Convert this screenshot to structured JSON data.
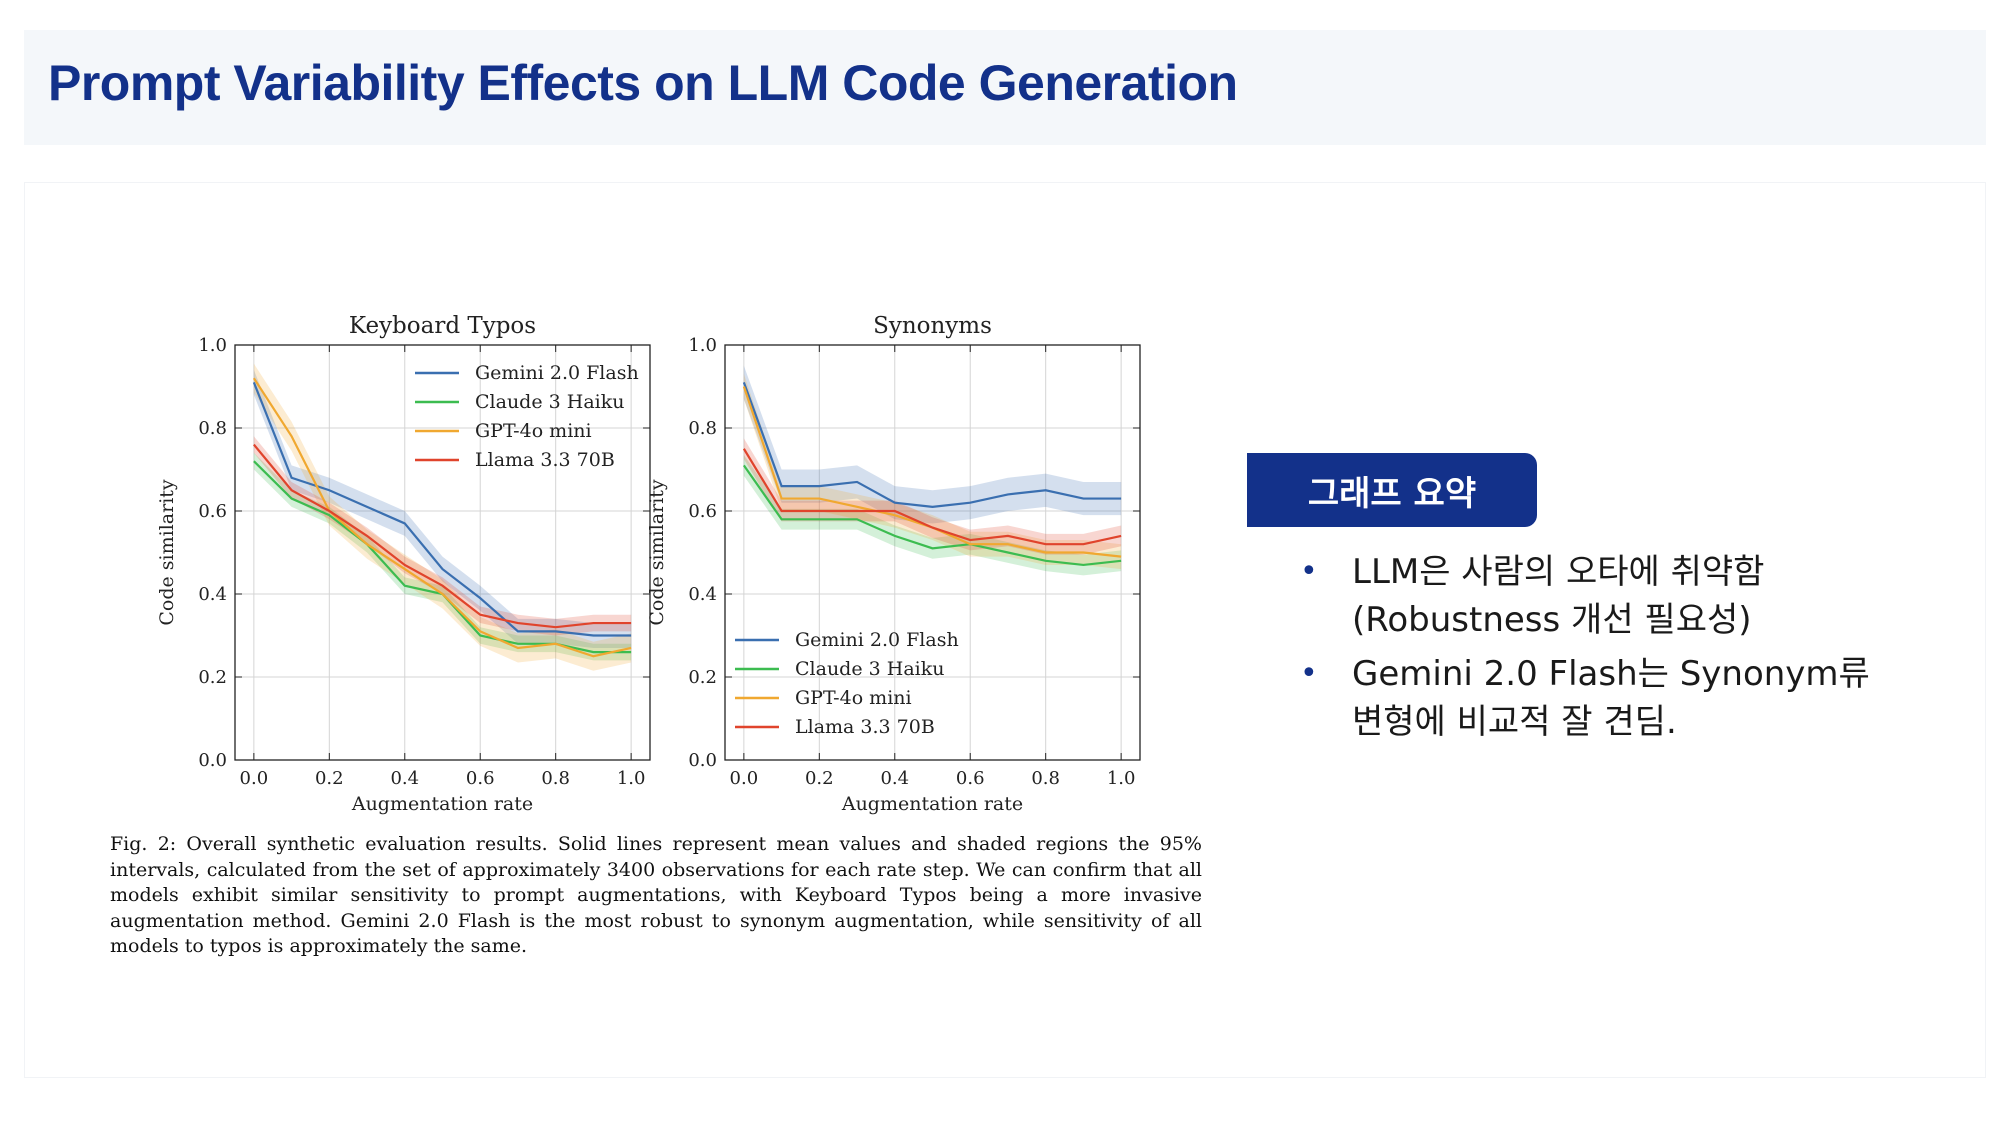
{
  "slide": {
    "title": "Prompt Variability Effects on LLM Code Generation"
  },
  "caption": "Fig. 2: Overall synthetic evaluation results. Solid lines represent mean values and shaded regions the 95% intervals, calculated from the set of approximately 3400 observations for each rate step. We can confirm that all models exhibit similar sensitivity to prompt augmentations, with Keyboard Typos being a more invasive augmentation method. Gemini 2.0 Flash is the most robust to synonym augmentation, while sensitivity of all models to typos is approximately the same.",
  "summary": {
    "badge": "그래프 요약",
    "bullets": [
      {
        "lines": [
          "LLM은 사람의 오타에 취약함",
          "(Robustness 개선 필요성)"
        ]
      },
      {
        "lines": [
          "Gemini 2.0 Flash는 Synonym류",
          "변형에 비교적 잘 견딤."
        ]
      }
    ]
  },
  "colors": {
    "title": "#13318a",
    "badge_bg": "#13318a",
    "gemini": "#3a6fb0",
    "claude": "#3cbc50",
    "gpt": "#f0a830",
    "llama": "#e0442c"
  },
  "chart_data": [
    {
      "type": "line",
      "title": "Keyboard Typos",
      "xlabel": "Augmentation rate",
      "ylabel": "Code similarity",
      "xlim": [
        -0.05,
        1.05
      ],
      "ylim": [
        0.0,
        1.0
      ],
      "xticks": [
        "0.0",
        "0.2",
        "0.4",
        "0.6",
        "0.8",
        "1.0"
      ],
      "yticks": [
        "0.0",
        "0.2",
        "0.4",
        "0.6",
        "0.8",
        "1.0"
      ],
      "grid": true,
      "legend": "top-right",
      "x": [
        0.0,
        0.1,
        0.2,
        0.3,
        0.4,
        0.5,
        0.6,
        0.7,
        0.8,
        0.9,
        1.0
      ],
      "series": [
        {
          "name": "Gemini 2.0 Flash",
          "color": "#3a6fb0",
          "band": 0.03,
          "values": [
            0.91,
            0.68,
            0.65,
            0.61,
            0.57,
            0.46,
            0.39,
            0.31,
            0.31,
            0.3,
            0.3
          ]
        },
        {
          "name": "Claude 3 Haiku",
          "color": "#3cbc50",
          "band": 0.02,
          "values": [
            0.72,
            0.63,
            0.59,
            0.52,
            0.42,
            0.4,
            0.3,
            0.28,
            0.28,
            0.26,
            0.26
          ]
        },
        {
          "name": "GPT-4o mini",
          "color": "#f0a830",
          "band": 0.035,
          "values": [
            0.92,
            0.78,
            0.6,
            0.52,
            0.46,
            0.4,
            0.31,
            0.27,
            0.28,
            0.25,
            0.27
          ]
        },
        {
          "name": "Llama 3.3 70B",
          "color": "#e0442c",
          "band": 0.02,
          "values": [
            0.76,
            0.65,
            0.6,
            0.54,
            0.47,
            0.42,
            0.35,
            0.33,
            0.32,
            0.33,
            0.33
          ]
        }
      ]
    },
    {
      "type": "line",
      "title": "Synonyms",
      "xlabel": "Augmentation rate",
      "ylabel": "Code similarity",
      "xlim": [
        -0.05,
        1.05
      ],
      "ylim": [
        0.0,
        1.0
      ],
      "xticks": [
        "0.0",
        "0.2",
        "0.4",
        "0.6",
        "0.8",
        "1.0"
      ],
      "yticks": [
        "0.0",
        "0.2",
        "0.4",
        "0.6",
        "0.8",
        "1.0"
      ],
      "grid": true,
      "legend": "bottom-left",
      "x": [
        0.0,
        0.1,
        0.2,
        0.3,
        0.4,
        0.5,
        0.6,
        0.7,
        0.8,
        0.9,
        1.0
      ],
      "series": [
        {
          "name": "Gemini 2.0 Flash",
          "color": "#3a6fb0",
          "band": 0.04,
          "values": [
            0.91,
            0.66,
            0.66,
            0.67,
            0.62,
            0.61,
            0.62,
            0.64,
            0.65,
            0.63,
            0.63
          ]
        },
        {
          "name": "Claude 3 Haiku",
          "color": "#3cbc50",
          "band": 0.025,
          "values": [
            0.71,
            0.58,
            0.58,
            0.58,
            0.54,
            0.51,
            0.52,
            0.5,
            0.48,
            0.47,
            0.48
          ]
        },
        {
          "name": "GPT-4o mini",
          "color": "#f0a830",
          "band": 0.03,
          "values": [
            0.9,
            0.63,
            0.63,
            0.61,
            0.59,
            0.56,
            0.52,
            0.52,
            0.5,
            0.5,
            0.49
          ]
        },
        {
          "name": "Llama 3.3 70B",
          "color": "#e0442c",
          "band": 0.025,
          "values": [
            0.75,
            0.6,
            0.6,
            0.6,
            0.6,
            0.56,
            0.53,
            0.54,
            0.52,
            0.52,
            0.54
          ]
        }
      ]
    }
  ]
}
